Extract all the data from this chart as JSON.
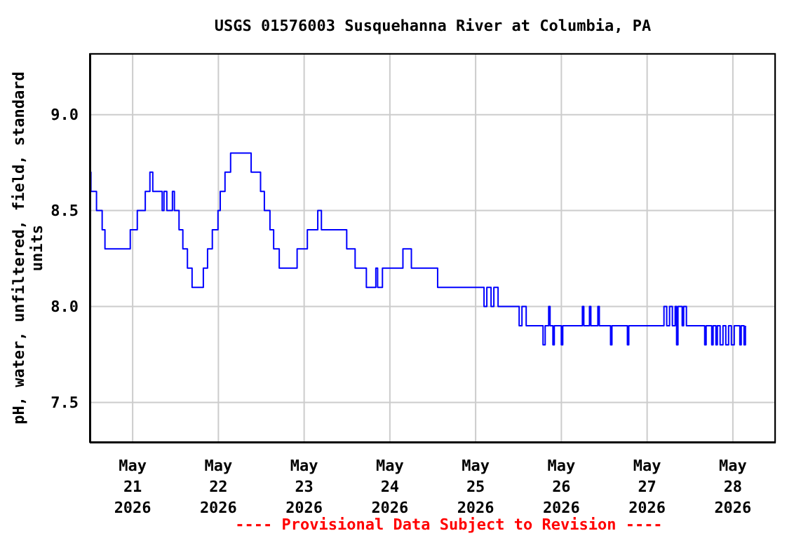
{
  "chart_data": {
    "type": "step",
    "title": "USGS 01576003 Susquehanna River at Columbia, PA",
    "ylabel": "pH, water, unfiltered, field, standard units",
    "annotations": [
      "---- Provisional Data Subject to Revision ----"
    ],
    "x": [
      "2026-05-20T12:05",
      "2026-05-20T12:19",
      "2026-05-20T13:53",
      "2026-05-20T15:28",
      "2026-05-20T16:15",
      "2026-05-20T23:20",
      "2026-05-21T01:18",
      "2026-05-21T03:32",
      "2026-05-21T04:50",
      "2026-05-21T05:38",
      "2026-05-21T08:16",
      "2026-05-21T08:46",
      "2026-05-21T09:34",
      "2026-05-21T11:08",
      "2026-05-21T11:41",
      "2026-05-21T12:59",
      "2026-05-21T14:03",
      "2026-05-21T15:20",
      "2026-05-21T16:38",
      "2026-05-21T19:47",
      "2026-05-21T20:58",
      "2026-05-21T22:18",
      "2026-05-21T23:53",
      "2026-05-22T00:31",
      "2026-05-22T01:51",
      "2026-05-22T03:25",
      "2026-05-22T09:10",
      "2026-05-22T11:48",
      "2026-05-22T12:52",
      "2026-05-22T14:26",
      "2026-05-22T15:28",
      "2026-05-22T17:02",
      "2026-05-22T22:02",
      "2026-05-23T00:54",
      "2026-05-23T03:49",
      "2026-05-23T04:50",
      "2026-05-23T11:55",
      "2026-05-23T14:16",
      "2026-05-23T17:25",
      "2026-05-23T20:04",
      "2026-05-23T20:34",
      "2026-05-23T21:55",
      "2026-05-24T03:39",
      "2026-05-24T06:01",
      "2026-05-24T13:22",
      "2026-05-25T02:21",
      "2026-05-25T03:08",
      "2026-05-25T04:19",
      "2026-05-25T05:06",
      "2026-05-25T06:17",
      "2026-05-25T12:11",
      "2026-05-25T12:58",
      "2026-05-25T14:09",
      "2026-05-25T18:52",
      "2026-05-25T19:28",
      "2026-05-25T20:27",
      "2026-05-25T20:50",
      "2026-05-25T21:38",
      "2026-05-25T22:01",
      "2026-05-25T23:59",
      "2026-05-26T00:23",
      "2026-05-26T05:53",
      "2026-05-26T06:17",
      "2026-05-26T07:52",
      "2026-05-26T08:15",
      "2026-05-26T10:13",
      "2026-05-26T10:37",
      "2026-05-26T13:46",
      "2026-05-26T14:09",
      "2026-05-26T18:29",
      "2026-05-26T18:52",
      "2026-05-27T04:43",
      "2026-05-27T05:29",
      "2026-05-27T06:17",
      "2026-05-27T07:04",
      "2026-05-27T07:51",
      "2026-05-27T08:15",
      "2026-05-27T08:38",
      "2026-05-27T09:49",
      "2026-05-27T10:13",
      "2026-05-27T11:00",
      "2026-05-27T16:07",
      "2026-05-27T16:31",
      "2026-05-27T18:05",
      "2026-05-27T18:28",
      "2026-05-27T19:16",
      "2026-05-27T19:39",
      "2026-05-27T20:26",
      "2026-05-27T21:14",
      "2026-05-27T22:01",
      "2026-05-27T22:48",
      "2026-05-27T23:35",
      "2026-05-28T00:23",
      "2026-05-28T01:57",
      "2026-05-28T02:20",
      "2026-05-28T03:08",
      "2026-05-28T03:31"
    ],
    "series": [
      {
        "color": "#0000ff",
        "values": [
          8.7,
          8.6,
          8.5,
          8.4,
          8.3,
          8.4,
          8.5,
          8.6,
          8.7,
          8.6,
          8.5,
          8.6,
          8.5,
          8.6,
          8.5,
          8.4,
          8.3,
          8.2,
          8.1,
          8.2,
          8.3,
          8.4,
          8.5,
          8.6,
          8.7,
          8.8,
          8.7,
          8.6,
          8.5,
          8.4,
          8.3,
          8.2,
          8.3,
          8.4,
          8.5,
          8.4,
          8.3,
          8.2,
          8.1,
          8.2,
          8.1,
          8.2,
          8.3,
          8.2,
          8.1,
          8.0,
          8.1,
          8.0,
          8.1,
          8.0,
          7.9,
          8.0,
          7.9,
          7.8,
          7.9,
          8.0,
          7.9,
          7.8,
          7.9,
          7.8,
          7.9,
          8.0,
          7.9,
          8.0,
          7.9,
          8.0,
          7.9,
          7.8,
          7.9,
          7.8,
          7.9,
          8.0,
          7.9,
          8.0,
          7.9,
          8.0,
          7.8,
          8.0,
          7.9,
          8.0,
          7.9,
          7.8,
          7.9,
          7.8,
          7.9,
          7.8,
          7.9,
          7.8,
          7.9,
          7.8,
          7.9,
          7.8,
          7.9,
          7.8,
          7.9,
          7.8,
          7.9
        ]
      }
    ],
    "xlim": [
      "2026-05-20T12:00",
      "2026-05-28T12:00"
    ],
    "xticks": [
      {
        "value": "2026-05-21",
        "label": "May 21 2026"
      },
      {
        "value": "2026-05-22",
        "label": "May 22 2026"
      },
      {
        "value": "2026-05-23",
        "label": "May 23 2026"
      },
      {
        "value": "2026-05-24",
        "label": "May 24 2026"
      },
      {
        "value": "2026-05-25",
        "label": "May 25 2026"
      },
      {
        "value": "2026-05-26",
        "label": "May 26 2026"
      },
      {
        "value": "2026-05-27",
        "label": "May 27 2026"
      },
      {
        "value": "2026-05-28",
        "label": "May 28 2026"
      }
    ],
    "ylim": [
      7.29,
      9.32
    ],
    "yticks": [
      {
        "value": 7.5,
        "label": "7.5"
      },
      {
        "value": 8,
        "label": "8.0"
      },
      {
        "value": 8.5,
        "label": "8.5"
      },
      {
        "value": 9,
        "label": "9.0"
      }
    ],
    "grid": true,
    "marker": "none",
    "line_style": "solid"
  }
}
